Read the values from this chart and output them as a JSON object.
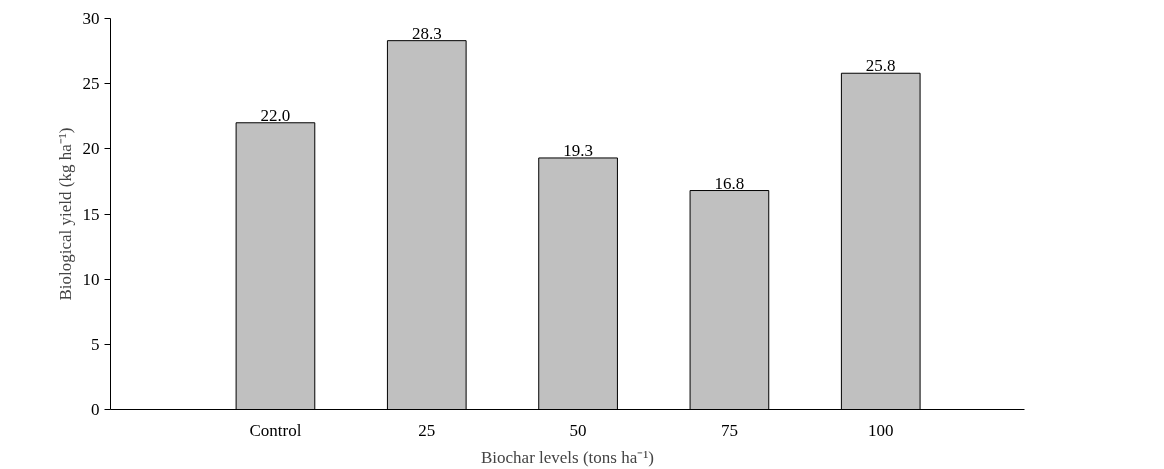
{
  "chart_data": {
    "type": "bar",
    "xlabel": "Biochar levels (tons ha⁻¹)",
    "ylabel": "Biological yield (kg ha⁻¹)",
    "categories": [
      "Control",
      "25",
      "50",
      "75",
      "100"
    ],
    "values": [
      22.0,
      28.3,
      19.3,
      16.8,
      25.8
    ],
    "value_labels": [
      "22.0",
      "28.3",
      "19.3",
      "16.8",
      "25.8"
    ],
    "color": "#c0c0c0",
    "ylim": [
      0,
      30
    ],
    "yticks": [
      0,
      5,
      10,
      15,
      20,
      25,
      30
    ],
    "grid": false
  }
}
